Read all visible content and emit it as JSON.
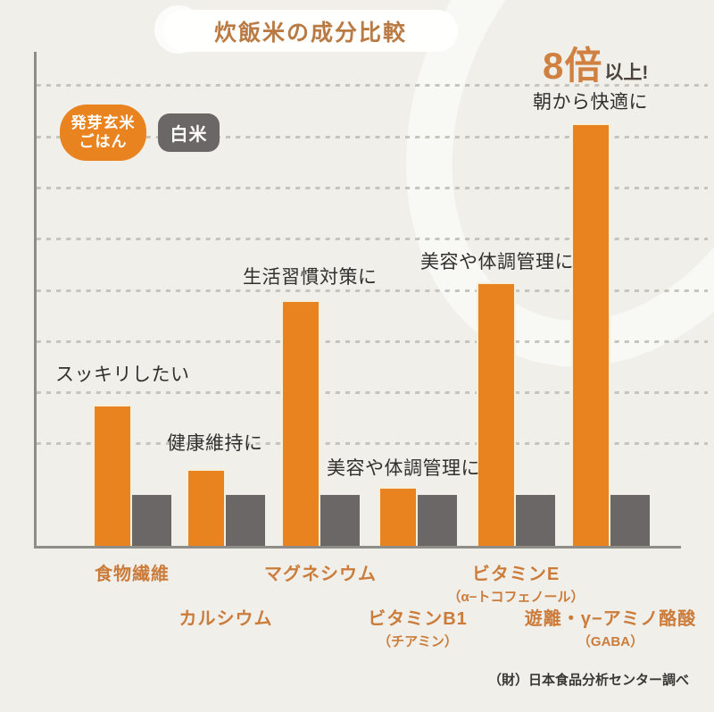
{
  "title": "炊飯米の成分比較",
  "highlight": {
    "multiplier": "8倍",
    "suffix": "以上!"
  },
  "legend": {
    "items": [
      {
        "label_line1": "発芽玄米",
        "label_line2": "ごはん",
        "color": "#e8831f"
      },
      {
        "label": "白米",
        "color": "#6a6766"
      }
    ]
  },
  "chart_data": {
    "type": "bar",
    "categories": [
      {
        "label": "食物繊維",
        "sublabel": "",
        "annotation": "スッキリしたい"
      },
      {
        "label": "カルシウム",
        "sublabel": "",
        "annotation": "健康維持に"
      },
      {
        "label": "マグネシウム",
        "sublabel": "",
        "annotation": "生活習慣対策に"
      },
      {
        "label": "ビタミンB1",
        "sublabel": "（チアミン）",
        "annotation": "美容や体調管理に"
      },
      {
        "label": "ビタミンE",
        "sublabel": "（α−トコフェノール）",
        "annotation": "美容や体調管理に"
      },
      {
        "label": "遊離・γ−アミノ酪酸",
        "sublabel": "（GABA）",
        "annotation": "朝から快適に"
      }
    ],
    "series": [
      {
        "name": "発芽玄米ごはん",
        "color": "#e8831f",
        "values": [
          2.75,
          1.5,
          4.8,
          1.15,
          5.15,
          8.25
        ]
      },
      {
        "name": "白米",
        "color": "#6a6766",
        "values": [
          1,
          1,
          1,
          1,
          1,
          1
        ]
      }
    ],
    "ylim": [
      0,
      9.6
    ],
    "gridline_levels": [
      2,
      3,
      4,
      5,
      6,
      7,
      8,
      9
    ],
    "grid": "dashed-horizontal",
    "legend_position": "top-left",
    "xlabel": "",
    "ylabel": ""
  },
  "footer": "（財）日本食品分析センター調べ"
}
